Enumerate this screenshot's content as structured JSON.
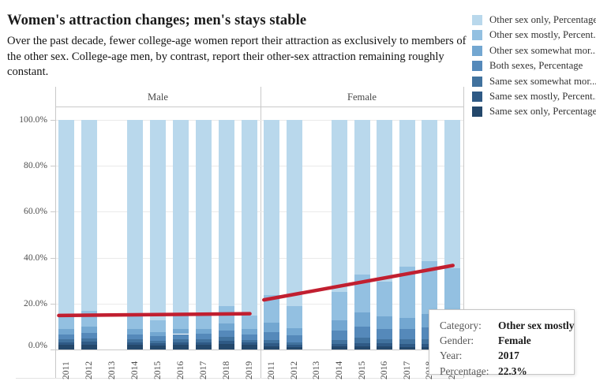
{
  "title": "Women's attraction changes; men's stays stable",
  "subtitle": "Over the past decade, fewer college-age women report their attraction as exclusively to members of the other sex. College-age men, by contrast, report their other-sex attraction remaining roughly constant.",
  "legend": {
    "items": [
      {
        "label": "Other sex only, Percentage",
        "color": "#b9d8ec"
      },
      {
        "label": "Other sex mostly, Percent...",
        "color": "#93c0e1"
      },
      {
        "label": "Other sex somewhat mor...",
        "color": "#73a7d1"
      },
      {
        "label": "Both sexes, Percentage",
        "color": "#5589ba"
      },
      {
        "label": "Same sex somewhat mor...",
        "color": "#41729e"
      },
      {
        "label": "Same sex mostly, Percent...",
        "color": "#2f5a85"
      },
      {
        "label": "Same sex only, Percentage",
        "color": "#24486b"
      }
    ]
  },
  "chart_data": {
    "type": "bar",
    "stacked": true,
    "panels": [
      "Male",
      "Female"
    ],
    "years": [
      "2011",
      "2012",
      "2013",
      "2014",
      "2015",
      "2016",
      "2017",
      "2018",
      "2019"
    ],
    "missing_years": [
      "2013"
    ],
    "ylim": [
      0,
      100
    ],
    "y_tick_labels": [
      "0.0%",
      "20.0%",
      "40.0%",
      "60.0%",
      "80.0%",
      "100.0%"
    ],
    "grid": true,
    "legend_position": "top-right",
    "segments": [
      {
        "name": "Other sex only, Percentage",
        "color": "#b9d8ec"
      },
      {
        "name": "Other sex mostly, Percentage",
        "color": "#93c0e1"
      },
      {
        "name": "Other sex somewhat more, Percentage",
        "color": "#73a7d1"
      },
      {
        "name": "Both sexes, Percentage",
        "color": "#5589ba"
      },
      {
        "name": "Same sex somewhat more, Percentage",
        "color": "#41729e"
      },
      {
        "name": "Same sex mostly, Percentage",
        "color": "#2f5a85"
      },
      {
        "name": "Same sex only, Percentage",
        "color": "#24486b"
      }
    ],
    "series": {
      "Male": {
        "2011": [
          85.2,
          6.0,
          2.2,
          2.2,
          1.2,
          1.2,
          2.0
        ],
        "2012": [
          83.2,
          7.0,
          2.5,
          2.6,
          1.3,
          1.2,
          2.2
        ],
        "2013": null,
        "2014": [
          84.9,
          6.2,
          2.3,
          2.3,
          1.2,
          1.1,
          2.0
        ],
        "2015": [
          87.3,
          5.0,
          2.0,
          2.0,
          1.0,
          1.0,
          1.7
        ],
        "2016": [
          84.9,
          6.0,
          2.4,
          2.4,
          1.2,
          1.1,
          2.0
        ],
        "2017": [
          84.9,
          6.0,
          2.3,
          2.4,
          1.2,
          1.2,
          2.0
        ],
        "2018": [
          81.1,
          7.5,
          3.0,
          3.0,
          1.5,
          1.4,
          2.5
        ],
        "2019": [
          85.2,
          6.0,
          2.3,
          2.3,
          1.2,
          1.1,
          1.9
        ]
      },
      "Female": {
        "2011": [
          76.3,
          12.0,
          4.0,
          3.5,
          1.5,
          1.2,
          1.5
        ],
        "2012": [
          81.1,
          9.5,
          3.2,
          3.0,
          1.2,
          1.0,
          1.0
        ],
        "2013": null,
        "2014": [
          74.9,
          12.5,
          4.5,
          4.0,
          1.6,
          1.2,
          1.3
        ],
        "2015": [
          67.4,
          16.5,
          6.0,
          5.0,
          2.2,
          1.5,
          1.4
        ],
        "2016": [
          70.4,
          15.0,
          5.5,
          4.5,
          2.0,
          1.3,
          1.3
        ],
        "2017": [
          63.9,
          22.3,
          5.0,
          4.5,
          2.0,
          1.2,
          1.1
        ],
        "2018": [
          61.5,
          23.0,
          6.0,
          5.0,
          2.2,
          1.3,
          1.0
        ],
        "2019": [
          64.6,
          21.0,
          5.5,
          4.5,
          2.0,
          1.3,
          1.1
        ]
      }
    },
    "trend_lines": [
      {
        "panel": "Male",
        "start_pct": 14.8,
        "end_pct": 15.6,
        "color": "#c11f30"
      },
      {
        "panel": "Female",
        "start_pct": 21.6,
        "end_pct": 36.6,
        "color": "#c11f30"
      }
    ]
  },
  "tooltip": {
    "rows": [
      {
        "label": "Category:",
        "value": "Other sex mostly"
      },
      {
        "label": "Gender:",
        "value": "Female"
      },
      {
        "label": "Year:",
        "value": "2017"
      },
      {
        "label": "Percentage:",
        "value": "22.3%"
      }
    ]
  }
}
